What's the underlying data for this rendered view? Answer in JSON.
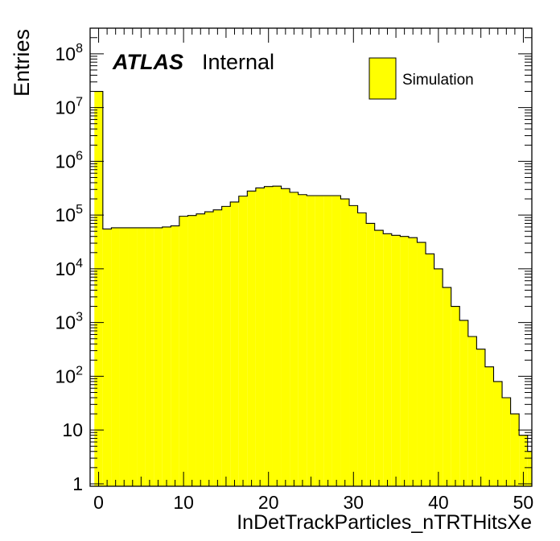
{
  "chart_data": {
    "type": "bar",
    "xlabel": "InDetTrackParticles_nTRTHitsXe",
    "ylabel": "Entries",
    "xlim": [
      -1,
      51
    ],
    "ylim": [
      0.9,
      300000000
    ],
    "yscale": "log",
    "x_ticks": [
      "0",
      "10",
      "20",
      "30",
      "40",
      "50"
    ],
    "y_ticks": [
      {
        "value": 1,
        "label": "1"
      },
      {
        "value": 10,
        "label": "10"
      },
      {
        "value": 100,
        "base": "10",
        "exp": "2"
      },
      {
        "value": 1000,
        "base": "10",
        "exp": "3"
      },
      {
        "value": 10000,
        "base": "10",
        "exp": "4"
      },
      {
        "value": 100000,
        "base": "10",
        "exp": "5"
      },
      {
        "value": 1000000,
        "base": "10",
        "exp": "6"
      },
      {
        "value": 10000000,
        "base": "10",
        "exp": "7"
      },
      {
        "value": 100000000,
        "base": "10",
        "exp": "8"
      }
    ],
    "bin_edges_start": -0.5,
    "bin_width": 1,
    "series": [
      {
        "name": "Simulation",
        "color": "#ffff00",
        "values": [
          20000000,
          55000,
          58000,
          58000,
          58000,
          58000,
          58000,
          58000,
          60000,
          63000,
          95000,
          98000,
          105000,
          115000,
          125000,
          145000,
          175000,
          225000,
          280000,
          320000,
          340000,
          345000,
          310000,
          265000,
          240000,
          230000,
          230000,
          230000,
          230000,
          200000,
          150000,
          110000,
          70000,
          52000,
          45000,
          42000,
          40000,
          38000,
          31000,
          19000,
          10000,
          4500,
          2000,
          1100,
          550,
          320,
          150,
          80,
          40,
          20,
          8,
          4
        ]
      }
    ],
    "annotations": {
      "experiment": "ATLAS",
      "status": "Internal"
    },
    "legend": {
      "label": "Simulation",
      "placement": "top-right"
    },
    "grid": false
  }
}
